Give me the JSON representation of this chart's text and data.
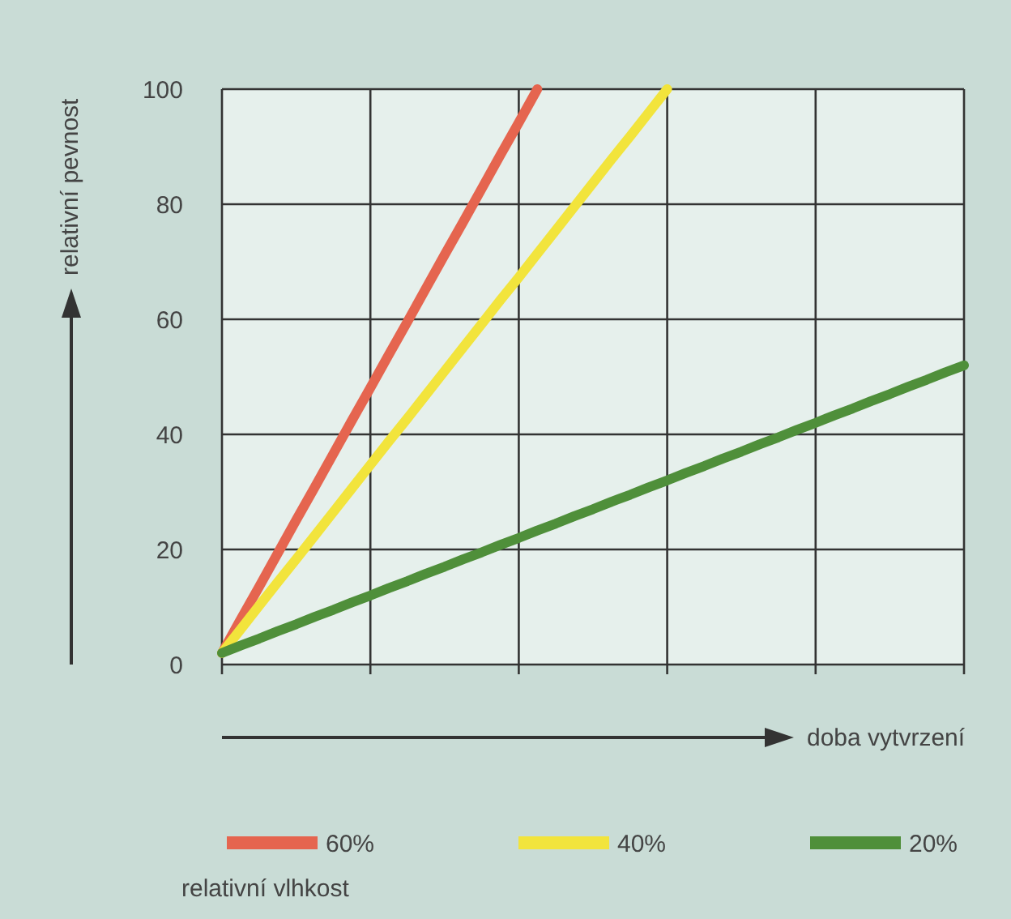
{
  "chart_data": {
    "type": "line",
    "xlabel": "doba vytvrzení",
    "ylabel": "relativní pevnost",
    "legend_title": "relativní vlhkost",
    "categories": [
      null,
      null,
      null,
      null,
      null,
      null,
      null,
      null,
      null,
      null,
      null,
      null,
      null,
      null,
      null,
      null,
      null,
      null,
      null,
      null,
      null,
      null,
      null,
      null,
      null,
      null,
      null,
      null,
      null,
      null,
      null,
      null,
      null,
      null,
      null,
      null,
      null,
      null,
      null,
      null,
      null
    ],
    "ylim": [
      0,
      100
    ],
    "yticks": [
      0,
      20,
      40,
      60,
      80,
      100
    ],
    "grid": true,
    "legend": "bottom",
    "marker": "none",
    "line_style": "solid",
    "series": [
      {
        "name": "60%",
        "color": "#e5654f",
        "values": [
          2,
          7.8,
          13.5,
          19.3,
          25.1,
          30.8,
          36.6,
          42.4,
          48.1,
          53.9,
          59.6,
          65.4,
          71.2,
          76.9,
          82.7,
          88.5,
          94.2,
          100,
          null,
          null,
          null,
          null,
          null,
          null,
          null,
          null,
          null,
          null,
          null,
          null,
          null,
          null,
          null,
          null,
          null,
          null,
          null,
          null,
          null,
          null,
          null
        ]
      },
      {
        "name": "40%",
        "color": "#f2e43c",
        "values": [
          2,
          6.1,
          10.2,
          14.3,
          18.3,
          22.4,
          26.5,
          30.6,
          34.7,
          38.8,
          42.8,
          46.9,
          51,
          55.1,
          59.2,
          63.3,
          67.3,
          71.4,
          75.5,
          79.6,
          83.7,
          87.8,
          91.8,
          95.9,
          100,
          null,
          null,
          null,
          null,
          null,
          null,
          null,
          null,
          null,
          null,
          null,
          null,
          null,
          null,
          null,
          null
        ]
      },
      {
        "name": "20%",
        "color": "#4f8f3a",
        "values": [
          2,
          3.3,
          4.5,
          5.8,
          7,
          8.3,
          9.5,
          10.8,
          12,
          13.3,
          14.5,
          15.8,
          17,
          18.3,
          19.5,
          20.8,
          22,
          23.3,
          24.5,
          25.8,
          27,
          28.3,
          29.5,
          30.8,
          32,
          33.3,
          34.5,
          35.8,
          37,
          38.3,
          39.5,
          40.8,
          42,
          43.3,
          44.5,
          45.8,
          47,
          48.3,
          49.5,
          50.8,
          52
        ]
      }
    ]
  }
}
